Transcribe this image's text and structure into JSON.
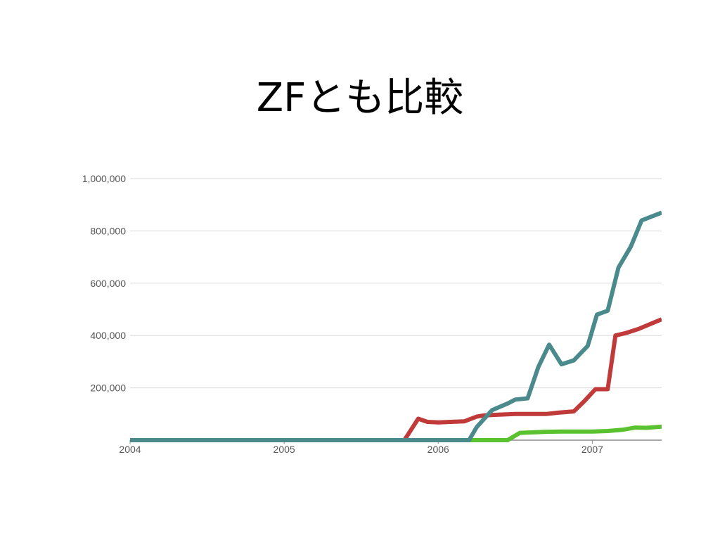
{
  "slide": {
    "title": "ZFとも比較"
  },
  "chart_data": {
    "type": "line",
    "title": "",
    "xlabel": "",
    "ylabel": "",
    "xlim": [
      2004.0,
      2007.45
    ],
    "ylim": [
      0,
      1000000
    ],
    "grid": true,
    "y_ticks": [
      {
        "value": 200000,
        "label": "200,000"
      },
      {
        "value": 400000,
        "label": "400,000"
      },
      {
        "value": 600000,
        "label": "600,000"
      },
      {
        "value": 800000,
        "label": "800,000"
      },
      {
        "value": 1000000,
        "label": "1,000,000"
      }
    ],
    "x_ticks": [
      {
        "value": 2004,
        "label": "2004"
      },
      {
        "value": 2005,
        "label": "2005"
      },
      {
        "value": 2006,
        "label": "2006"
      },
      {
        "value": 2007,
        "label": "2007"
      }
    ],
    "series": [
      {
        "color": "#5ac22e",
        "points": [
          [
            2004.0,
            0
          ],
          [
            2006.2,
            0
          ],
          [
            2006.3,
            0
          ],
          [
            2006.4,
            0
          ],
          [
            2006.45,
            0
          ],
          [
            2006.53,
            28000
          ],
          [
            2006.63,
            30000
          ],
          [
            2006.7,
            32000
          ],
          [
            2006.8,
            33000
          ],
          [
            2006.9,
            33000
          ],
          [
            2007.0,
            33000
          ],
          [
            2007.1,
            35000
          ],
          [
            2007.2,
            40000
          ],
          [
            2007.28,
            48000
          ],
          [
            2007.35,
            47000
          ],
          [
            2007.45,
            52000
          ]
        ]
      },
      {
        "color": "#c03a3a",
        "points": [
          [
            2004.0,
            0
          ],
          [
            2005.78,
            0
          ],
          [
            2005.87,
            82000
          ],
          [
            2005.93,
            70000
          ],
          [
            2006.0,
            68000
          ],
          [
            2006.08,
            70000
          ],
          [
            2006.17,
            72000
          ],
          [
            2006.25,
            90000
          ],
          [
            2006.3,
            95000
          ],
          [
            2006.38,
            97000
          ],
          [
            2006.5,
            100000
          ],
          [
            2006.7,
            100000
          ],
          [
            2006.78,
            105000
          ],
          [
            2006.88,
            110000
          ],
          [
            2006.95,
            150000
          ],
          [
            2007.02,
            195000
          ],
          [
            2007.1,
            195000
          ],
          [
            2007.15,
            400000
          ],
          [
            2007.22,
            410000
          ],
          [
            2007.3,
            425000
          ],
          [
            2007.38,
            445000
          ],
          [
            2007.45,
            462000
          ]
        ]
      },
      {
        "color": "#4a8a8c",
        "points": [
          [
            2004.0,
            0
          ],
          [
            2006.2,
            0
          ],
          [
            2006.25,
            50000
          ],
          [
            2006.35,
            115000
          ],
          [
            2006.45,
            140000
          ],
          [
            2006.5,
            155000
          ],
          [
            2006.58,
            160000
          ],
          [
            2006.65,
            280000
          ],
          [
            2006.72,
            365000
          ],
          [
            2006.8,
            290000
          ],
          [
            2006.88,
            305000
          ],
          [
            2006.97,
            360000
          ],
          [
            2007.03,
            480000
          ],
          [
            2007.1,
            495000
          ],
          [
            2007.17,
            660000
          ],
          [
            2007.25,
            740000
          ],
          [
            2007.32,
            840000
          ],
          [
            2007.45,
            870000
          ]
        ]
      }
    ]
  }
}
